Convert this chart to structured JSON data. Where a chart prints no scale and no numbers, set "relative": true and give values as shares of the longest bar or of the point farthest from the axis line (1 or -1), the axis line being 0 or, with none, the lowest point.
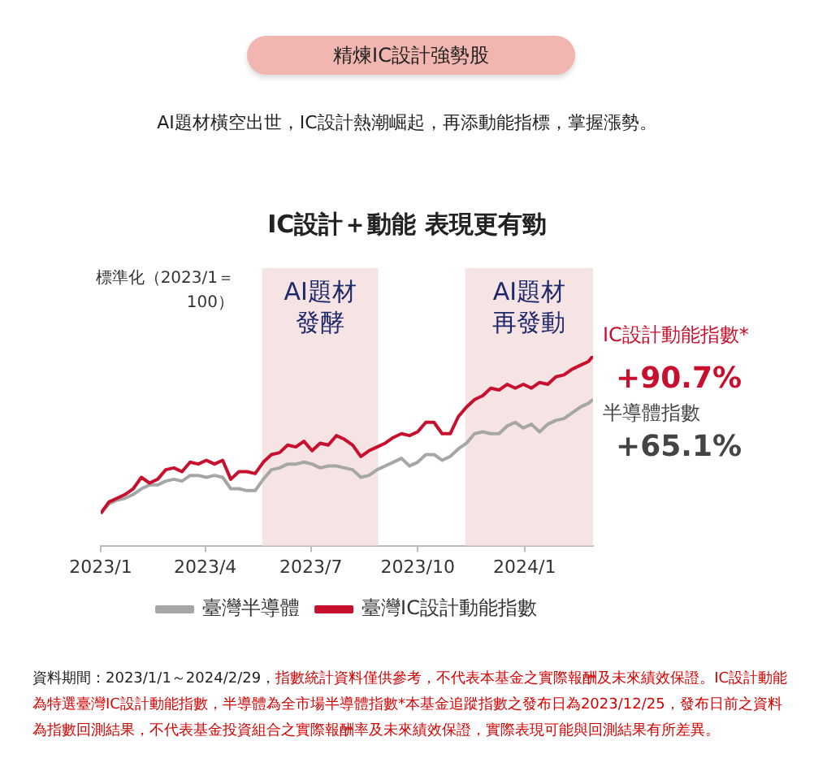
{
  "chart_data": {
    "type": "line",
    "title": "精煉IC設計強勢股",
    "subtitle": "AI題材橫空出世，IC設計熱潮崛起，再添動能指標，掌握漲勢。",
    "ylabel": "標準化（2023/1＝100）",
    "relative": true,
    "grid": false,
    "legend": "bottom",
    "marker": "none",
    "line_style": "solid",
    "xlim": [
      "2023-01-01",
      "2024-02-29"
    ],
    "xticks": [
      {
        "value": "2023-01-01",
        "label": "2023/1"
      },
      {
        "value": "2023-04-01",
        "label": "2023/4"
      },
      {
        "value": "2023-07-01",
        "label": "2023/7"
      },
      {
        "value": "2023-10-01",
        "label": "2023/10"
      },
      {
        "value": "2024-01-01",
        "label": "2024/1"
      }
    ],
    "x": [
      "2023-01-01",
      "2023-01-08",
      "2023-01-15",
      "2023-01-22",
      "2023-01-29",
      "2023-02-05",
      "2023-02-12",
      "2023-02-19",
      "2023-02-26",
      "2023-03-05",
      "2023-03-12",
      "2023-03-19",
      "2023-03-26",
      "2023-04-02",
      "2023-04-09",
      "2023-04-16",
      "2023-04-23",
      "2023-04-30",
      "2023-05-07",
      "2023-05-14",
      "2023-05-21",
      "2023-05-28",
      "2023-06-04",
      "2023-06-11",
      "2023-06-18",
      "2023-06-25",
      "2023-07-02",
      "2023-07-09",
      "2023-07-16",
      "2023-07-23",
      "2023-07-30",
      "2023-08-06",
      "2023-08-13",
      "2023-08-20",
      "2023-08-27",
      "2023-09-03",
      "2023-09-10",
      "2023-09-17",
      "2023-09-24",
      "2023-10-01",
      "2023-10-08",
      "2023-10-15",
      "2023-10-22",
      "2023-10-29",
      "2023-11-05",
      "2023-11-12",
      "2023-11-19",
      "2023-11-26",
      "2023-12-03",
      "2023-12-10",
      "2023-12-17",
      "2023-12-24",
      "2023-12-31",
      "2024-01-07",
      "2024-01-14",
      "2024-01-21",
      "2024-01-28",
      "2024-02-04",
      "2024-02-11",
      "2024-02-18",
      "2024-02-25",
      "2024-02-29"
    ],
    "series": [
      {
        "name": "臺灣半導體",
        "color": "#a6a6a6",
        "values": [
          0.17,
          0.22,
          0.24,
          0.25,
          0.27,
          0.3,
          0.32,
          0.32,
          0.34,
          0.35,
          0.34,
          0.37,
          0.37,
          0.36,
          0.37,
          0.36,
          0.3,
          0.3,
          0.29,
          0.29,
          0.35,
          0.4,
          0.41,
          0.43,
          0.43,
          0.44,
          0.43,
          0.41,
          0.42,
          0.42,
          0.41,
          0.4,
          0.36,
          0.37,
          0.4,
          0.42,
          0.44,
          0.46,
          0.42,
          0.44,
          0.48,
          0.48,
          0.45,
          0.47,
          0.51,
          0.54,
          0.59,
          0.6,
          0.59,
          0.59,
          0.63,
          0.65,
          0.62,
          0.64,
          0.6,
          0.64,
          0.66,
          0.67,
          0.7,
          0.73,
          0.75,
          0.77
        ]
      },
      {
        "name": "臺灣IC設計動能指數",
        "color": "#c8102e",
        "values": [
          0.17,
          0.23,
          0.25,
          0.27,
          0.3,
          0.36,
          0.33,
          0.35,
          0.4,
          0.41,
          0.39,
          0.44,
          0.43,
          0.45,
          0.43,
          0.45,
          0.35,
          0.39,
          0.39,
          0.38,
          0.44,
          0.48,
          0.49,
          0.53,
          0.52,
          0.55,
          0.5,
          0.54,
          0.53,
          0.58,
          0.56,
          0.53,
          0.47,
          0.5,
          0.52,
          0.54,
          0.57,
          0.59,
          0.58,
          0.6,
          0.65,
          0.65,
          0.59,
          0.59,
          0.68,
          0.73,
          0.77,
          0.79,
          0.83,
          0.82,
          0.85,
          0.83,
          0.85,
          0.83,
          0.86,
          0.85,
          0.89,
          0.9,
          0.93,
          0.95,
          0.97,
          1
        ]
      }
    ],
    "bands": [
      {
        "axis": "x",
        "from": "2023-05-20",
        "to": "2023-08-28",
        "label": "AI題材發酵",
        "color": "#f6e4e4"
      },
      {
        "axis": "x",
        "from": "2023-11-11",
        "to": "2024-02-29",
        "label": "AI題材再發動",
        "color": "#f6e4e4"
      }
    ],
    "annotations": [
      "IC設計＋動能 表現更有勁",
      {
        "text": "IC設計動能指數*",
        "x": "2024-02-29",
        "y": 1
      },
      {
        "text": "+90.7%",
        "x": "2024-02-29",
        "y": 1
      },
      {
        "text": "半導體指數",
        "x": "2024-02-29",
        "y": 0.77
      },
      {
        "text": "+65.1%",
        "x": "2024-02-29",
        "y": 0.77
      },
      "資料期間：2023/1/1～2024/2/29，",
      "指數統計資料僅供參考，不代表本基金之實際報酬及未來績效保證。IC設計動能為特選臺灣IC設計動能指數，半導體為全市場半導體指數*本基金追蹤指數之發布日為2023/12/25，發布日前之資料為指數回測結果，不代表基金投資組合之實際報酬率及未來績效保證，實際表現可能與回測結果有所差異。"
    ]
  }
}
